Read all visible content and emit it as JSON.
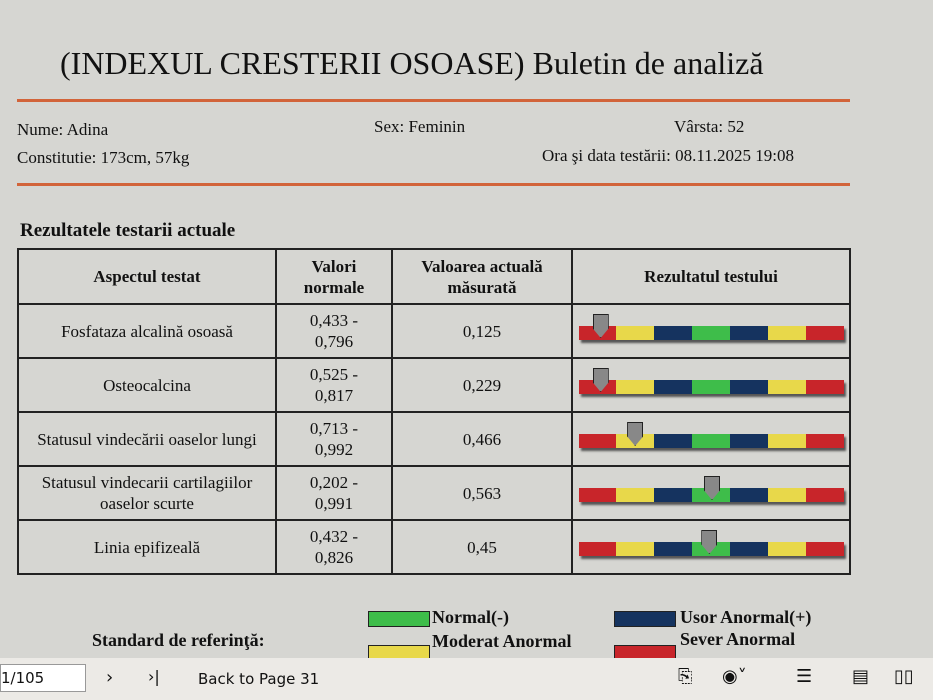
{
  "header": {
    "title": "(INDEXUL CRESTERII OSOASE) Buletin de analiză"
  },
  "patient": {
    "name": "Nume: Adina",
    "sex": "Sex: Feminin",
    "age": "Vârsta: 52",
    "constitution": "Constitutie: 173cm, 57kg",
    "test_datetime": "Ora şi data testării: 08.11.2025 19:08"
  },
  "section_title": "Rezultatele testarii actuale",
  "table": {
    "columns": [
      "Aspectul testat",
      "Valori normale",
      "Valoarea actuală măsurată",
      "Rezultatul testului"
    ],
    "rows": [
      [
        "Fosfataza alcalină osoasă",
        "0,433 - 0,796",
        "0,125"
      ],
      [
        "Osteocalcina",
        "0,525 - 0,817",
        "0,229"
      ],
      [
        "Statusul vindecării oaselor lungi",
        "0,713 - 0,992",
        "0,466"
      ],
      [
        "Statusul vindecarii cartilagiilor oaselor scurte",
        "0,202 - 0,991",
        "0,563"
      ],
      [
        "Linia epifizeală",
        "0,432 - 0,826",
        "0,45"
      ]
    ]
  },
  "legend": {
    "title": "Standard de referinţă:",
    "items": [
      "Normal(-)",
      "Moderat Anormal",
      "Usor Anormal(+)",
      "Sever Anormal"
    ]
  },
  "toolbar": {
    "page": "1/105",
    "back": "Back to Page 31"
  }
}
